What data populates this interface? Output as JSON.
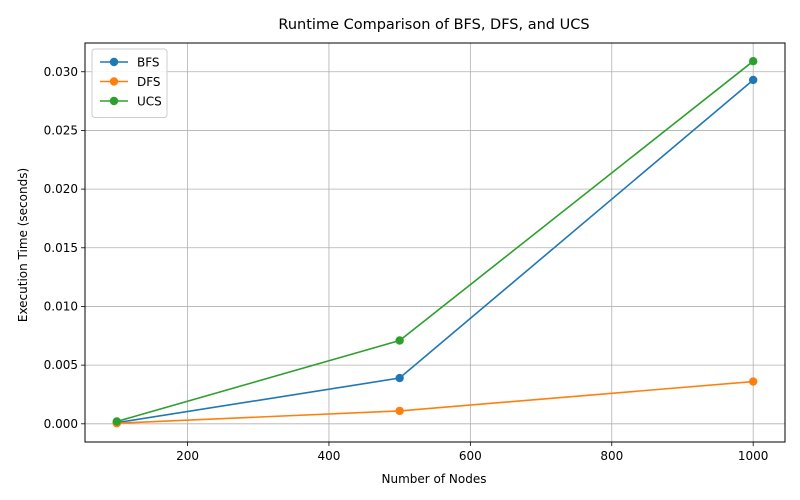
{
  "chart_data": {
    "type": "line",
    "title": "Runtime Comparison of BFS, DFS, and UCS",
    "xlabel": "Number of Nodes",
    "ylabel": "Execution Time (seconds)",
    "x": [
      100,
      500,
      1000
    ],
    "xlim": [
      55,
      1045
    ],
    "ylim": [
      -0.00155,
      0.03245
    ],
    "xticks": [
      200,
      400,
      600,
      800,
      1000
    ],
    "yticks": [
      0.0,
      0.005,
      0.01,
      0.015,
      0.02,
      0.025,
      0.03
    ],
    "ytick_labels": [
      "0.000",
      "0.005",
      "0.010",
      "0.015",
      "0.020",
      "0.025",
      "0.030"
    ],
    "grid": true,
    "legend_position": "top-left",
    "series": [
      {
        "name": "BFS",
        "color": "#1f77b4",
        "values": [
          0.0001,
          0.0039,
          0.0293
        ]
      },
      {
        "name": "DFS",
        "color": "#ff7f0e",
        "values": [
          5e-05,
          0.0011,
          0.0036
        ]
      },
      {
        "name": "UCS",
        "color": "#2ca02c",
        "values": [
          0.0002,
          0.0071,
          0.0309
        ]
      }
    ]
  }
}
